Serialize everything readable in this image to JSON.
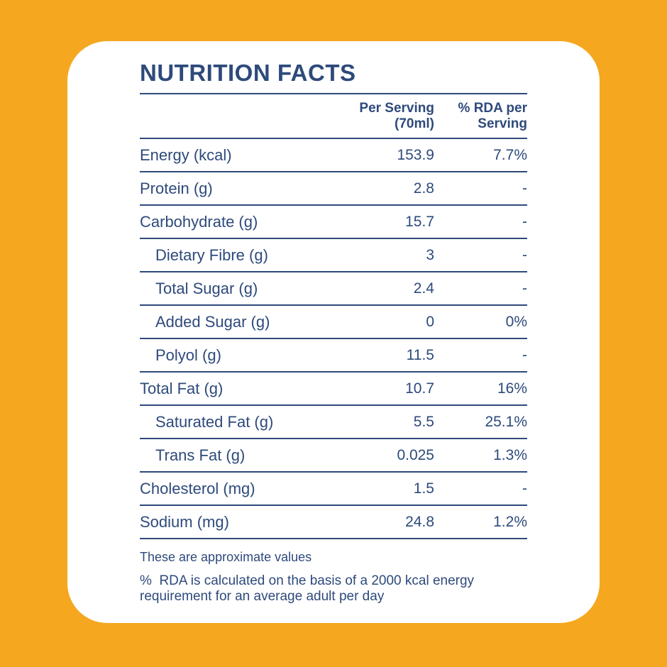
{
  "colors": {
    "background": "#f5a71f",
    "card": "#ffffff",
    "text": "#2e4a7b"
  },
  "panel": {
    "title": "NUTRITION FACTS"
  },
  "table": {
    "header": {
      "per_serving": "Per Serving\n(70ml)",
      "rda": "% RDA per\nServing"
    },
    "rows": [
      {
        "label": "Energy (kcal)",
        "per_serving": "153.9",
        "rda": "7.7%",
        "indent": false
      },
      {
        "label": "Protein (g)",
        "per_serving": "2.8",
        "rda": "-",
        "indent": false
      },
      {
        "label": "Carbohydrate (g)",
        "per_serving": "15.7",
        "rda": "-",
        "indent": false
      },
      {
        "label": "Dietary Fibre (g)",
        "per_serving": "3",
        "rda": "-",
        "indent": true
      },
      {
        "label": "Total Sugar (g)",
        "per_serving": "2.4",
        "rda": "-",
        "indent": true
      },
      {
        "label": "Added Sugar (g)",
        "per_serving": "0",
        "rda": "0%",
        "indent": true
      },
      {
        "label": "Polyol (g)",
        "per_serving": "11.5",
        "rda": "-",
        "indent": true
      },
      {
        "label": "Total Fat (g)",
        "per_serving": "10.7",
        "rda": "16%",
        "indent": false
      },
      {
        "label": "Saturated Fat (g)",
        "per_serving": "5.5",
        "rda": "25.1%",
        "indent": true
      },
      {
        "label": "Trans Fat (g)",
        "per_serving": "0.025",
        "rda": "1.3%",
        "indent": true
      },
      {
        "label": "Cholesterol (mg)",
        "per_serving": "1.5",
        "rda": "-",
        "indent": false
      },
      {
        "label": "Sodium (mg)",
        "per_serving": "24.8",
        "rda": "1.2%",
        "indent": false
      }
    ]
  },
  "footnotes": {
    "approx": "These are approximate values",
    "rda_note": "%  RDA is calculated on the basis of a 2000 kcal energy\nrequirement for an average adult per day"
  }
}
